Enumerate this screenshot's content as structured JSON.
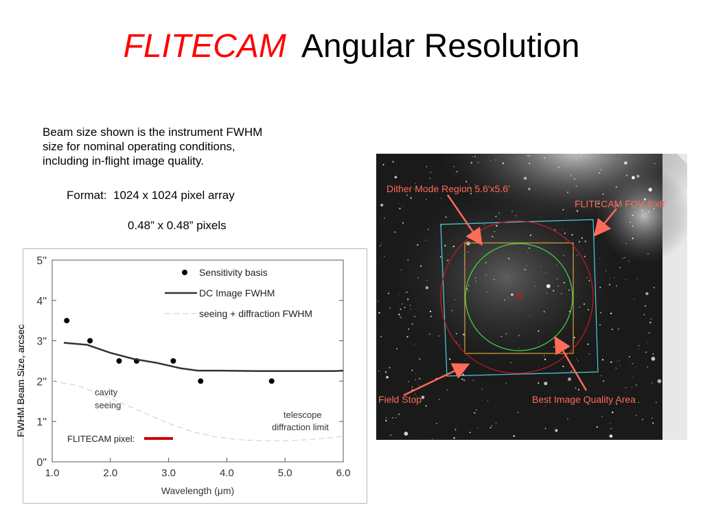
{
  "slide": {
    "title_brand": "FLITECAM",
    "title_rest": "Angular Resolution",
    "description": "Beam size shown is the instrument FWHM\nsize for nominal operating conditions,\nincluding in-flight image quality.",
    "format_line": "Format:  1024 x 1024 pixel array",
    "pixel_line": "0.48” x 0.48” pixels"
  },
  "chart_data": {
    "type": "line",
    "xlabel": "Wavelength (μm)",
    "ylabel": "FWHM Beam Size, arcsec",
    "xlim": [
      1.0,
      6.0
    ],
    "ylim": [
      0,
      5
    ],
    "xticks": [
      "1.0",
      "2.0",
      "3.0",
      "4.0",
      "5.0",
      "6.0"
    ],
    "yticks": [
      "0\"",
      "1\"",
      "2\"",
      "3\"",
      "4\"",
      "5\""
    ],
    "series": [
      {
        "name": "Sensitivity  basis",
        "style": "points",
        "color": "#000000",
        "x": [
          1.25,
          1.65,
          2.15,
          2.45,
          3.08,
          3.55,
          4.77
        ],
        "y": [
          3.5,
          3.0,
          2.5,
          2.5,
          2.5,
          2.0,
          2.0
        ]
      },
      {
        "name": "DC Image FWHM",
        "style": "line",
        "color": "#333333",
        "x": [
          1.2,
          1.6,
          2.0,
          2.4,
          2.8,
          3.2,
          3.5,
          3.9,
          4.5,
          5.0,
          5.5,
          5.85,
          6.0
        ],
        "y": [
          2.95,
          2.9,
          2.7,
          2.55,
          2.45,
          2.32,
          2.26,
          2.26,
          2.25,
          2.25,
          2.25,
          2.25,
          2.26
        ]
      },
      {
        "name": "seeing + diffraction FWHM",
        "style": "dashed",
        "color": "#cccccc",
        "x": [
          1.0,
          1.4,
          1.8,
          2.2,
          2.6,
          3.0,
          3.4,
          3.8,
          4.2,
          4.6,
          5.0,
          5.4,
          5.8,
          6.0
        ],
        "y": [
          2.0,
          1.9,
          1.7,
          1.45,
          1.2,
          0.95,
          0.75,
          0.62,
          0.55,
          0.52,
          0.52,
          0.55,
          0.6,
          0.63
        ]
      }
    ],
    "annotations": {
      "cavity_line1": "cavity",
      "cavity_line2": "seeing",
      "telescope_line1": "telescope",
      "telescope_line2": "diffraction limit",
      "pixel_label": "FLITECAM pixel:"
    },
    "pixel_marker_color": "#cc0000",
    "legend_position": "top-right"
  },
  "image": {
    "labels": {
      "dither": "Dither Mode Region 5.6'x5.6'",
      "fov": "FLITECAM FOV 8'x8'",
      "field_stop": "Field Stop",
      "best_area": "Best Image Quality Area"
    },
    "colors": {
      "label": "#ff6b5a",
      "fov_box": "#4fd0e0",
      "dither_box": "#e0a040",
      "best_circle": "#40d040",
      "field_stop_circle": "#cc1a1a"
    }
  }
}
